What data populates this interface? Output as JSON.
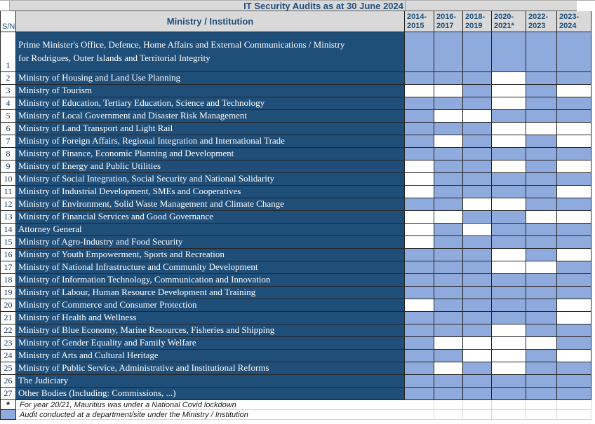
{
  "colors": {
    "dark_blue": "#1F4E79",
    "light_blue": "#8FAADC",
    "header_gray": "#D9D9D9",
    "header_text": "#1F4E79"
  },
  "title": "IT Security Audits as at 30 June 2024",
  "header": {
    "sn": "S/N",
    "ministry": "Ministry / Institution",
    "years": [
      "2014-\n2015",
      "2016-\n2017",
      "2018-\n2019",
      "2020-\n2021*",
      "2022-\n2023",
      "2023-\n2024"
    ]
  },
  "table": {
    "rows": [
      {
        "sn": 1,
        "name": "Prime Minister's Office, Defence, Home Affairs and External Communications / Ministry\nfor Rodrigues, Outer Islands and Territorial Integrity",
        "audits": [
          1,
          1,
          1,
          1,
          1,
          1
        ]
      },
      {
        "sn": 2,
        "name": "Ministry of Housing and Land Use Planning",
        "audits": [
          1,
          1,
          1,
          0,
          1,
          1
        ]
      },
      {
        "sn": 3,
        "name": "Ministry of Tourism",
        "audits": [
          0,
          0,
          1,
          0,
          1,
          0
        ]
      },
      {
        "sn": 4,
        "name": "Ministry of Education, Tertiary Education, Science and Technology",
        "audits": [
          1,
          1,
          1,
          0,
          1,
          1
        ]
      },
      {
        "sn": 5,
        "name": "Ministry of Local Government and Disaster Risk Management",
        "audits": [
          1,
          0,
          0,
          1,
          1,
          1
        ]
      },
      {
        "sn": 6,
        "name": "Ministry of Land Transport and Light Rail",
        "audits": [
          1,
          1,
          1,
          0,
          0,
          0
        ]
      },
      {
        "sn": 7,
        "name": "Ministry of Foreign Affairs, Regional Integration and International Trade",
        "audits": [
          1,
          0,
          1,
          0,
          1,
          0
        ]
      },
      {
        "sn": 8,
        "name": "Ministry of Finance, Economic Planning and Development",
        "audits": [
          1,
          1,
          1,
          1,
          1,
          1
        ]
      },
      {
        "sn": 9,
        "name": "Ministry of Energy and Public Utilities",
        "audits": [
          0,
          1,
          1,
          0,
          1,
          0
        ]
      },
      {
        "sn": 10,
        "name": "Ministry of Social Integration, Social Security and National Solidarity",
        "audits": [
          0,
          1,
          1,
          1,
          1,
          1
        ]
      },
      {
        "sn": 11,
        "name": "Ministry of Industrial Development, SMEs and Cooperatives",
        "audits": [
          0,
          1,
          1,
          1,
          1,
          0
        ]
      },
      {
        "sn": 12,
        "name": "Ministry of Environment, Solid Waste Management and Climate Change",
        "audits": [
          1,
          1,
          0,
          0,
          1,
          1
        ]
      },
      {
        "sn": 13,
        "name": "Ministry of Financial Services and Good Governance",
        "audits": [
          0,
          0,
          1,
          1,
          0,
          0
        ]
      },
      {
        "sn": 14,
        "name": "Attorney General",
        "audits": [
          0,
          1,
          0,
          1,
          1,
          1
        ]
      },
      {
        "sn": 15,
        "name": "Ministry of Agro-Industry and Food Security",
        "audits": [
          0,
          1,
          1,
          1,
          1,
          1
        ]
      },
      {
        "sn": 16,
        "name": "Ministry of Youth Empowerment, Sports and Recreation",
        "audits": [
          1,
          1,
          1,
          0,
          1,
          0
        ]
      },
      {
        "sn": 17,
        "name": "Ministry of National Infrastructure and Community Development",
        "audits": [
          1,
          1,
          1,
          0,
          0,
          1
        ]
      },
      {
        "sn": 18,
        "name": "Ministry of Information Technology, Communication and Innovation",
        "audits": [
          1,
          1,
          1,
          1,
          1,
          1
        ]
      },
      {
        "sn": 19,
        "name": "Ministry of Labour, Human Resource Development and Training",
        "audits": [
          1,
          1,
          1,
          1,
          1,
          1
        ]
      },
      {
        "sn": 20,
        "name": "Ministry of Commerce and Consumer Protection",
        "audits": [
          0,
          1,
          1,
          1,
          1,
          0
        ]
      },
      {
        "sn": 21,
        "name": "Ministry of Health and Wellness",
        "audits": [
          1,
          1,
          1,
          1,
          1,
          0
        ]
      },
      {
        "sn": 22,
        "name": "Ministry of Blue Economy, Marine Resources, Fisheries and Shipping",
        "audits": [
          1,
          1,
          1,
          0,
          1,
          1
        ]
      },
      {
        "sn": 23,
        "name": "Ministry of Gender Equality and Family Welfare",
        "audits": [
          1,
          0,
          0,
          0,
          0,
          1
        ]
      },
      {
        "sn": 24,
        "name": "Ministry of Arts and Cultural Heritage",
        "audits": [
          1,
          1,
          0,
          0,
          1,
          0
        ]
      },
      {
        "sn": 25,
        "name": "Ministry of Public Service, Administrative and Institutional Reforms",
        "audits": [
          1,
          0,
          1,
          0,
          1,
          1
        ]
      },
      {
        "sn": 26,
        "name": "The Judiciary",
        "audits": [
          1,
          1,
          1,
          1,
          1,
          1
        ]
      },
      {
        "sn": 27,
        "name": "Other Bodies (Including: Commissions, ...)",
        "audits": [
          1,
          1,
          1,
          1,
          1,
          1
        ]
      }
    ]
  },
  "footnotes": [
    {
      "marker": "*",
      "text": "For year 20/21, Mauritius was under a National Covid lockdown"
    },
    {
      "marker": "blue-swatch",
      "text": "Audit conducted at a department/site under the Ministry / Institution"
    }
  ]
}
